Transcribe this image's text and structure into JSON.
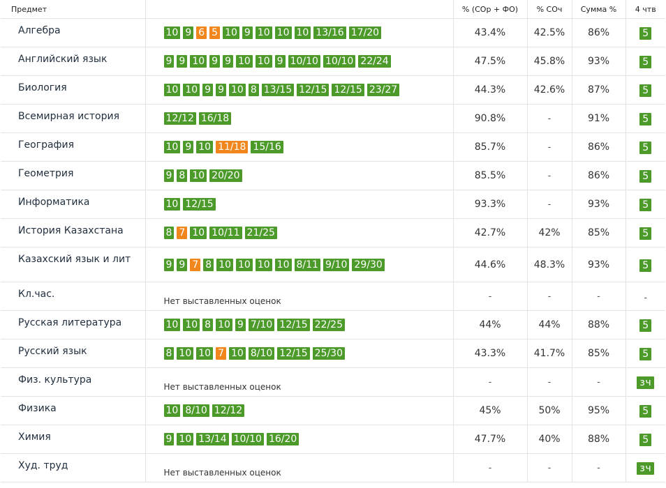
{
  "headers": {
    "subject": "Предмет",
    "marks": "",
    "pct_sor_fo": "% (СОр + ФО)",
    "pct_soch": "% СОч",
    "sum_pct": "Сумма %",
    "quarter": "4 чтв"
  },
  "no_marks_text": "Нет выставленных оценок",
  "colors": {
    "mark_green": "#4c9a2a",
    "mark_orange": "#f0861c"
  },
  "rows": [
    {
      "subject": "Алгебра",
      "marks": [
        {
          "v": "10"
        },
        {
          "v": "9"
        },
        {
          "v": "6",
          "c": "orange"
        },
        {
          "v": "5",
          "c": "orange"
        },
        {
          "v": "10"
        },
        {
          "v": "9"
        },
        {
          "v": "10"
        },
        {
          "v": "10"
        },
        {
          "v": "10"
        },
        {
          "v": "13/16"
        },
        {
          "v": "17/20"
        }
      ],
      "pct_sor_fo": "43.4%",
      "pct_soch": "42.5%",
      "sum_pct": "86%",
      "quarter": "5"
    },
    {
      "subject": "Английский язык",
      "marks": [
        {
          "v": "9"
        },
        {
          "v": "9"
        },
        {
          "v": "10"
        },
        {
          "v": "9"
        },
        {
          "v": "9"
        },
        {
          "v": "10"
        },
        {
          "v": "10"
        },
        {
          "v": "9"
        },
        {
          "v": "10/10"
        },
        {
          "v": "10/10"
        },
        {
          "v": "22/24"
        }
      ],
      "pct_sor_fo": "47.5%",
      "pct_soch": "45.8%",
      "sum_pct": "93%",
      "quarter": "5"
    },
    {
      "subject": "Биология",
      "marks": [
        {
          "v": "10"
        },
        {
          "v": "10"
        },
        {
          "v": "9"
        },
        {
          "v": "9"
        },
        {
          "v": "10"
        },
        {
          "v": "8"
        },
        {
          "v": "13/15"
        },
        {
          "v": "12/15"
        },
        {
          "v": "12/15"
        },
        {
          "v": "23/27"
        }
      ],
      "pct_sor_fo": "44.3%",
      "pct_soch": "42.6%",
      "sum_pct": "87%",
      "quarter": "5"
    },
    {
      "subject": "Всемирная история",
      "marks": [
        {
          "v": "12/12"
        },
        {
          "v": "16/18"
        }
      ],
      "pct_sor_fo": "90.8%",
      "pct_soch": "-",
      "sum_pct": "91%",
      "quarter": "5"
    },
    {
      "subject": "География",
      "marks": [
        {
          "v": "10"
        },
        {
          "v": "9"
        },
        {
          "v": "10"
        },
        {
          "v": "11/18",
          "c": "orange"
        },
        {
          "v": "15/16"
        }
      ],
      "pct_sor_fo": "85.7%",
      "pct_soch": "-",
      "sum_pct": "86%",
      "quarter": "5"
    },
    {
      "subject": "Геометрия",
      "marks": [
        {
          "v": "9"
        },
        {
          "v": "8"
        },
        {
          "v": "10"
        },
        {
          "v": "20/20"
        }
      ],
      "pct_sor_fo": "85.5%",
      "pct_soch": "-",
      "sum_pct": "86%",
      "quarter": "5"
    },
    {
      "subject": "Информатика",
      "marks": [
        {
          "v": "10"
        },
        {
          "v": "12/15"
        }
      ],
      "pct_sor_fo": "93.3%",
      "pct_soch": "-",
      "sum_pct": "93%",
      "quarter": "5"
    },
    {
      "subject": "История Казахстана",
      "marks": [
        {
          "v": "8"
        },
        {
          "v": "7",
          "c": "orange"
        },
        {
          "v": "10"
        },
        {
          "v": "10/11"
        },
        {
          "v": "21/25"
        }
      ],
      "pct_sor_fo": "42.7%",
      "pct_soch": "42%",
      "sum_pct": "85%",
      "quarter": "5"
    },
    {
      "subject": "Казахский язык и лит",
      "marks": [
        {
          "v": "9"
        },
        {
          "v": "9"
        },
        {
          "v": "7",
          "c": "orange"
        },
        {
          "v": "8"
        },
        {
          "v": "10"
        },
        {
          "v": "10"
        },
        {
          "v": "10"
        },
        {
          "v": "10"
        },
        {
          "v": "8/11"
        },
        {
          "v": "9/10"
        },
        {
          "v": "29/30"
        }
      ],
      "pct_sor_fo": "44.6%",
      "pct_soch": "48.3%",
      "sum_pct": "93%",
      "quarter": "5",
      "tall": true
    },
    {
      "subject": "Кл.час.",
      "marks": [],
      "pct_sor_fo": "-",
      "pct_soch": "-",
      "sum_pct": "-",
      "quarter": "-"
    },
    {
      "subject": "Русская литература",
      "marks": [
        {
          "v": "10"
        },
        {
          "v": "10"
        },
        {
          "v": "8"
        },
        {
          "v": "10"
        },
        {
          "v": "9"
        },
        {
          "v": "7/10"
        },
        {
          "v": "12/15"
        },
        {
          "v": "22/25"
        }
      ],
      "pct_sor_fo": "44%",
      "pct_soch": "44%",
      "sum_pct": "88%",
      "quarter": "5"
    },
    {
      "subject": "Русский язык",
      "marks": [
        {
          "v": "8"
        },
        {
          "v": "10"
        },
        {
          "v": "10"
        },
        {
          "v": "7",
          "c": "orange"
        },
        {
          "v": "10"
        },
        {
          "v": "8/10"
        },
        {
          "v": "12/15"
        },
        {
          "v": "25/30"
        }
      ],
      "pct_sor_fo": "43.3%",
      "pct_soch": "41.7%",
      "sum_pct": "85%",
      "quarter": "5"
    },
    {
      "subject": "Физ. культура",
      "marks": [],
      "pct_sor_fo": "-",
      "pct_soch": "-",
      "sum_pct": "-",
      "quarter": "зч"
    },
    {
      "subject": "Физика",
      "marks": [
        {
          "v": "10"
        },
        {
          "v": "8/10"
        },
        {
          "v": "12/12"
        }
      ],
      "pct_sor_fo": "45%",
      "pct_soch": "50%",
      "sum_pct": "95%",
      "quarter": "5"
    },
    {
      "subject": "Химия",
      "marks": [
        {
          "v": "9"
        },
        {
          "v": "10"
        },
        {
          "v": "13/14"
        },
        {
          "v": "10/10"
        },
        {
          "v": "16/20"
        }
      ],
      "pct_sor_fo": "47.7%",
      "pct_soch": "40%",
      "sum_pct": "88%",
      "quarter": "5"
    },
    {
      "subject": "Худ. труд",
      "marks": [],
      "pct_sor_fo": "-",
      "pct_soch": "-",
      "sum_pct": "-",
      "quarter": "зч"
    }
  ]
}
